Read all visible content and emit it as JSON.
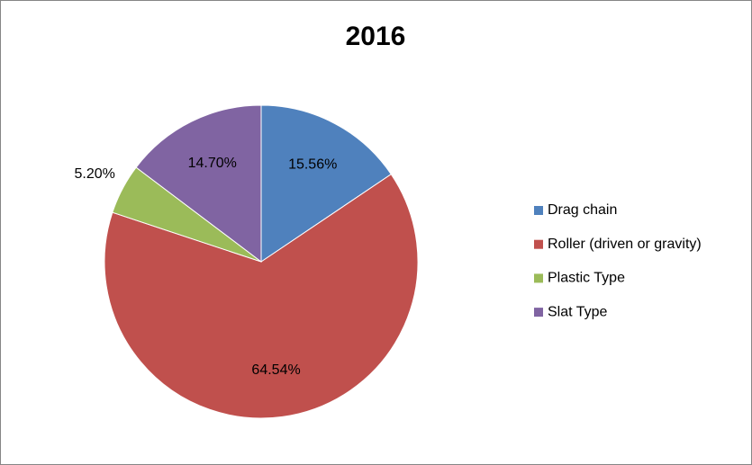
{
  "chart_data": {
    "type": "pie",
    "title": "2016",
    "categories": [
      "Drag chain",
      "Roller (driven or gravity)",
      "Plastic Type",
      "Slat Type"
    ],
    "values": [
      15.56,
      64.54,
      5.2,
      14.7
    ],
    "value_labels": [
      "15.56%",
      "64.54%",
      "5.20%",
      "14.70%"
    ],
    "colors": [
      "#4f81bd",
      "#c0504d",
      "#9bbb59",
      "#8064a2"
    ],
    "legend": "right"
  }
}
